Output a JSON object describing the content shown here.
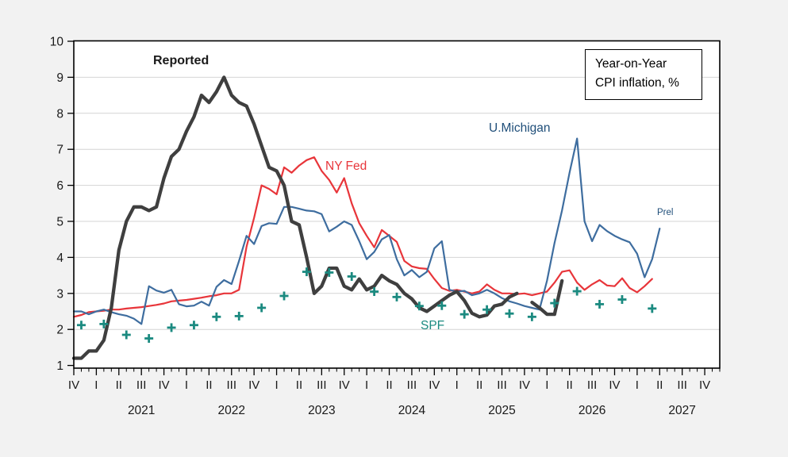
{
  "page": {
    "background_color": "#f2f2f2",
    "plot_background": "#ffffff",
    "gridline_color": "#d4d4d4",
    "axis_color": "#000000"
  },
  "labels": {
    "reported": "Reported",
    "ny_fed": "NY Fed",
    "u_michigan": "U.Michigan",
    "spf": "SPF",
    "prel": "Prel"
  },
  "legend": {
    "line1": "Year-on-Year",
    "line2": "CPI inflation, %"
  },
  "chart_data": {
    "type": "line",
    "title": "Year-on-Year CPI inflation, %",
    "x_axis": {
      "unit": "month",
      "start": "2020-10",
      "end": "2027-12",
      "months_span": 86,
      "major_tick": "quarterly",
      "minor_tick": "monthly",
      "quarter_labels": [
        "IV",
        "I",
        "II",
        "III",
        "IV",
        "I",
        "II",
        "III",
        "IV",
        "I",
        "II",
        "III",
        "IV",
        "I",
        "II",
        "III",
        "IV",
        "I",
        "II",
        "III",
        "IV",
        "I",
        "II",
        "III",
        "IV",
        "I",
        "II",
        "III",
        "IV"
      ],
      "year_labels": [
        {
          "label": "2021",
          "month_index": 9
        },
        {
          "label": "2022",
          "month_index": 21
        },
        {
          "label": "2023",
          "month_index": 33
        },
        {
          "label": "2024",
          "month_index": 45
        },
        {
          "label": "2025",
          "month_index": 57
        },
        {
          "label": "2026",
          "month_index": 69
        },
        {
          "label": "2027",
          "month_index": 81
        }
      ]
    },
    "y_axis": {
      "min": 1,
      "max": 10,
      "tick_step": 1,
      "tick_labels": [
        "1",
        "2",
        "3",
        "4",
        "5",
        "6",
        "7",
        "8",
        "9",
        "10"
      ],
      "gridlines": [
        2,
        3,
        4,
        5,
        6,
        7,
        8,
        9
      ]
    },
    "series": [
      {
        "id": "nyfed",
        "name": "NY Fed",
        "type": "line",
        "color": "#e8353a",
        "width": 2.2,
        "start_month_index": 0,
        "values": [
          2.35,
          2.4,
          2.48,
          2.5,
          2.52,
          2.55,
          2.55,
          2.58,
          2.6,
          2.62,
          2.65,
          2.68,
          2.72,
          2.78,
          2.8,
          2.82,
          2.85,
          2.88,
          2.92,
          2.95,
          3.0,
          3.0,
          3.1,
          4.3,
          5.1,
          6.0,
          5.9,
          5.75,
          6.5,
          6.35,
          6.55,
          6.7,
          6.78,
          6.4,
          6.15,
          5.8,
          6.2,
          5.5,
          4.95,
          4.6,
          4.28,
          4.76,
          4.6,
          4.43,
          3.9,
          3.75,
          3.7,
          3.68,
          3.4,
          3.15,
          3.07,
          3.1,
          3.05,
          3.0,
          3.05,
          3.25,
          3.1,
          3.0,
          3.0,
          2.98,
          3.0,
          2.95,
          3.0,
          3.05,
          3.3,
          3.6,
          3.64,
          3.3,
          3.1,
          3.25,
          3.37,
          3.22,
          3.2,
          3.42,
          3.15,
          3.03,
          3.2,
          3.4
        ]
      },
      {
        "id": "umichigan",
        "name": "U.Michigan",
        "type": "line",
        "color": "#3e6d9f",
        "width": 2.2,
        "start_month_index": 0,
        "values": [
          2.5,
          2.5,
          2.42,
          2.5,
          2.55,
          2.48,
          2.42,
          2.38,
          2.3,
          2.15,
          3.2,
          3.08,
          3.02,
          3.1,
          2.7,
          2.64,
          2.66,
          2.77,
          2.66,
          3.18,
          3.37,
          3.26,
          3.9,
          4.6,
          4.37,
          4.87,
          4.95,
          4.93,
          5.4,
          5.4,
          5.35,
          5.3,
          5.28,
          5.2,
          4.72,
          4.85,
          5.0,
          4.9,
          4.45,
          3.95,
          4.15,
          4.5,
          4.62,
          3.95,
          3.5,
          3.65,
          3.45,
          3.6,
          4.25,
          4.45,
          3.1,
          3.05,
          3.07,
          2.95,
          3.0,
          3.1,
          3.0,
          2.87,
          2.78,
          2.72,
          2.65,
          2.6,
          2.55,
          3.35,
          4.4,
          5.3,
          6.35,
          7.3,
          5.0,
          4.45,
          4.9,
          4.73,
          4.6,
          4.5,
          4.42,
          4.1,
          3.45,
          3.95,
          4.8
        ]
      },
      {
        "id": "reported",
        "name": "Reported",
        "type": "line",
        "color": "#3f3f3f",
        "width": 4.3,
        "start_month_index": 0,
        "values": [
          1.2,
          1.2,
          1.4,
          1.4,
          1.7,
          2.6,
          4.2,
          5.0,
          5.4,
          5.4,
          5.3,
          5.4,
          6.2,
          6.8,
          7.0,
          7.5,
          7.9,
          8.5,
          8.3,
          8.6,
          9.0,
          8.5,
          8.3,
          8.2,
          7.7,
          7.1,
          6.5,
          6.4,
          6.0,
          5.0,
          4.9,
          4.0,
          3.0,
          3.2,
          3.7,
          3.7,
          3.2,
          3.1,
          3.4,
          3.1,
          3.2,
          3.5,
          3.35,
          3.25,
          3.0,
          2.85,
          2.6,
          2.5,
          2.65,
          2.8,
          2.95,
          3.05,
          2.8,
          2.45,
          2.35,
          2.4,
          2.65,
          2.7,
          2.9,
          3.0
        ]
      },
      {
        "id": "reported_resumed",
        "name": "Reported (resumed segment)",
        "type": "line",
        "color": "#3f3f3f",
        "width": 4.3,
        "start_month_index": 61,
        "values": [
          2.75,
          2.6,
          2.42,
          2.42,
          3.35
        ]
      },
      {
        "id": "spf",
        "name": "SPF",
        "type": "plus-markers",
        "color": "#1b8a80",
        "marker_size": 11,
        "marker_stroke": 2.8,
        "month_indices": [
          1,
          4,
          7,
          10,
          13,
          16,
          19,
          22,
          25,
          28,
          31,
          34,
          37,
          40,
          43,
          46,
          49,
          52,
          55,
          58,
          61,
          64,
          67,
          70,
          73,
          77
        ],
        "values": [
          2.12,
          2.15,
          1.85,
          1.75,
          2.05,
          2.12,
          2.35,
          2.37,
          2.6,
          2.93,
          3.6,
          3.58,
          3.47,
          3.05,
          2.9,
          2.65,
          2.66,
          2.42,
          2.55,
          2.44,
          2.35,
          2.73,
          3.06,
          2.7,
          2.83,
          2.58
        ]
      }
    ]
  }
}
